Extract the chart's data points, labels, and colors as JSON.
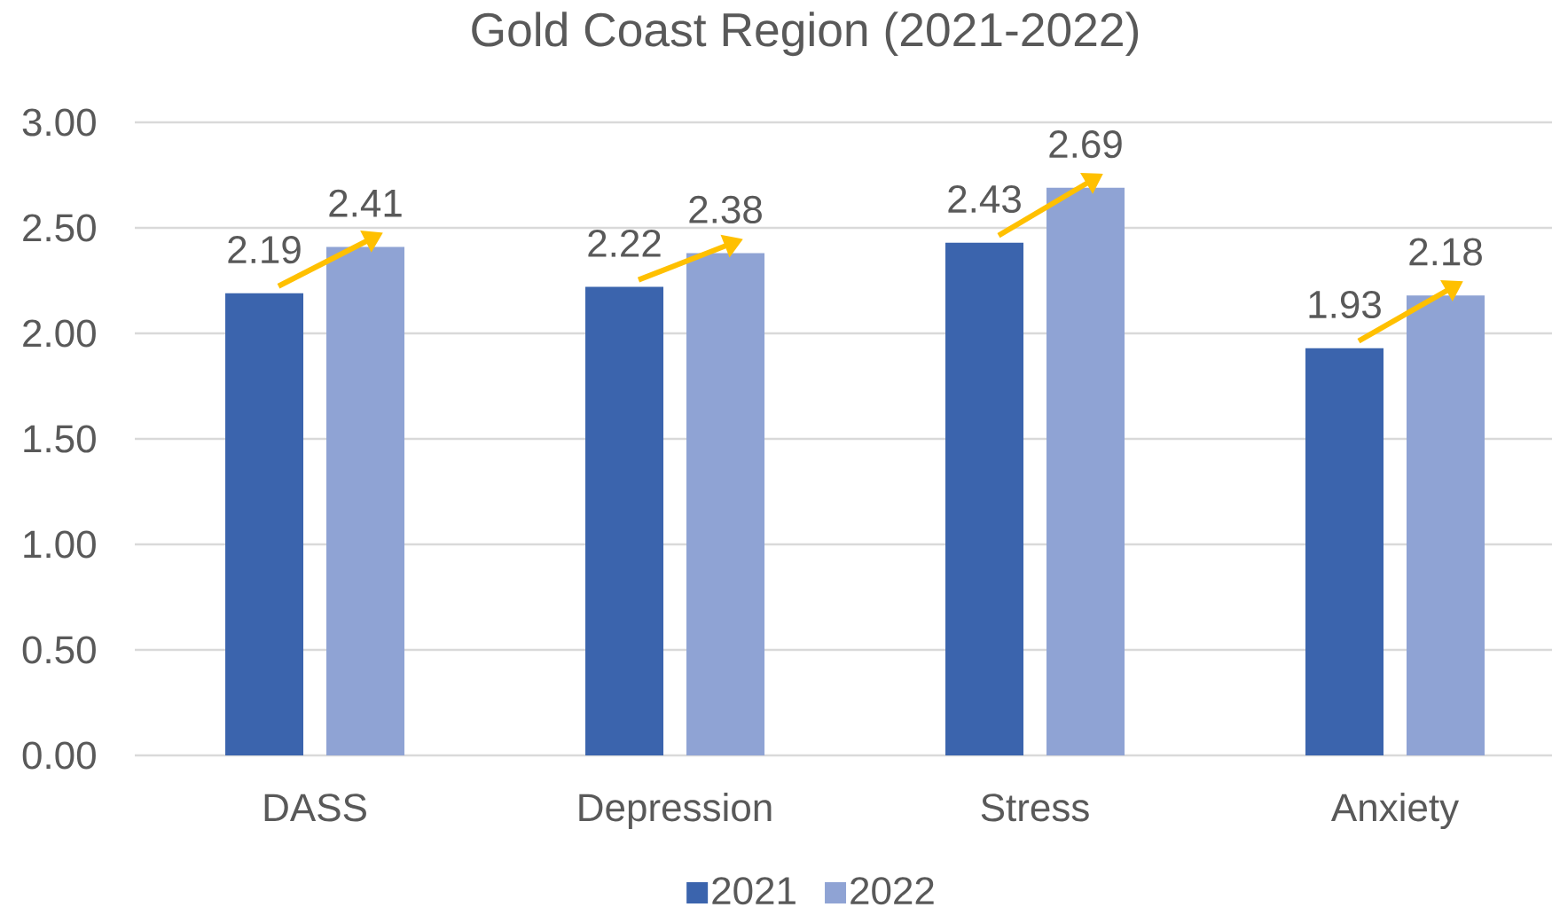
{
  "chart_data": {
    "type": "bar",
    "title": "Gold Coast Region (2021-2022)",
    "categories": [
      "DASS",
      "Depression",
      "Stress",
      "Anxiety"
    ],
    "series": [
      {
        "name": "2021",
        "color": "#3b64ad",
        "values": [
          2.19,
          2.22,
          2.43,
          1.93
        ]
      },
      {
        "name": "2022",
        "color": "#8fa3d4",
        "values": [
          2.41,
          2.38,
          2.69,
          2.18
        ]
      }
    ],
    "ylim": [
      0,
      3
    ],
    "yticks": [
      {
        "value": 0,
        "label": "0.00"
      },
      {
        "value": 0.5,
        "label": "0.50"
      },
      {
        "value": 1,
        "label": "1.00"
      },
      {
        "value": 1.5,
        "label": "1.50"
      },
      {
        "value": 2,
        "label": "2.00"
      },
      {
        "value": 2.5,
        "label": "2.50"
      },
      {
        "value": 3,
        "label": "3.00"
      }
    ],
    "grid": "y",
    "legend": "bottom",
    "data_labels": true
  }
}
